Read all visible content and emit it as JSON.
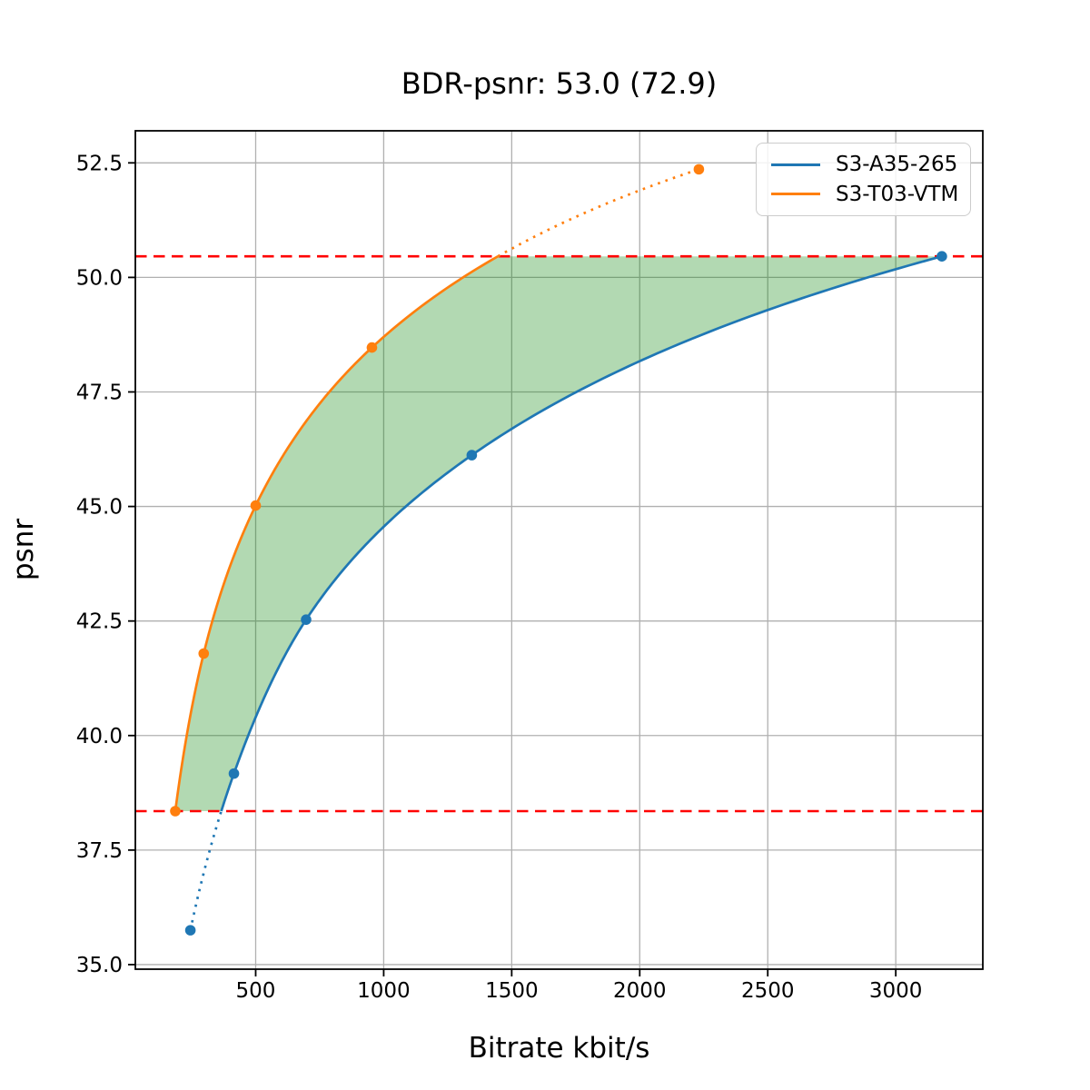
{
  "chart_data": {
    "type": "line",
    "title": "BDR-psnr: 53.0 (72.9)",
    "bdr_value": "53.0",
    "bdr_value_secondary": "72.9",
    "xlabel": "Bitrate kbit/s",
    "ylabel": "psnr",
    "xlim": [
      30,
      3340
    ],
    "ylim": [
      34.9,
      53.2
    ],
    "xticks": [
      500,
      1000,
      1500,
      2000,
      2500,
      3000
    ],
    "yticks": [
      35.0,
      37.5,
      40.0,
      42.5,
      45.0,
      47.5,
      50.0,
      52.5
    ],
    "grid": true,
    "grid_color": "#b0b0b0",
    "legend_position": "upper right",
    "interpolation": "pchip-log-x",
    "series": [
      {
        "name": "S3-A35-265",
        "color": "#1f77b4",
        "x": [
          245,
          415,
          697,
          1344,
          3180
        ],
        "y": [
          35.75,
          39.17,
          42.53,
          46.12,
          50.46
        ],
        "out_of_range_style": "dotted-below-lower-bound"
      },
      {
        "name": "S3-T03-VTM",
        "color": "#ff7f0e",
        "x": [
          186,
          297,
          500,
          954,
          2231
        ],
        "y": [
          38.35,
          41.79,
          45.02,
          48.47,
          52.36
        ],
        "out_of_range_style": "dotted-above-upper-bound"
      }
    ],
    "bd_bounds": {
      "psnr_low": 38.35,
      "psnr_high": 50.46,
      "line_color": "#ff0000",
      "line_style": "dashed"
    },
    "shading": {
      "color": "#008000",
      "opacity": 0.3,
      "between": [
        "S3-T03-VTM",
        "S3-A35-265"
      ]
    }
  }
}
